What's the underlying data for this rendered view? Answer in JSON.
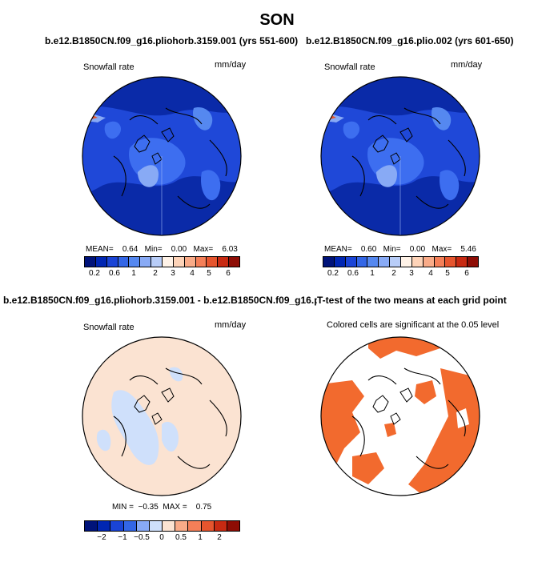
{
  "main_title": "SON",
  "panels": [
    {
      "title": "b.e12.B1850CN.f09_g16.pliohorb.3159.001 (yrs 551-600)",
      "field": "Snowfall rate",
      "units": "mm/day",
      "stats": "MEAN=    0.64   Min=    0.00   Max=    6.03",
      "colorbar_labels": [
        "0.2",
        "0.6",
        "1",
        "2",
        "3",
        "4",
        "5",
        "6"
      ]
    },
    {
      "title": "b.e12.B1850CN.f09_g16.plio.002 (yrs 601-650)",
      "field": "Snowfall rate",
      "units": "mm/day",
      "stats": "MEAN=    0.60   Min=    0.00   Max=    5.46",
      "colorbar_labels": [
        "0.2",
        "0.6",
        "1",
        "2",
        "3",
        "4",
        "5",
        "6"
      ]
    },
    {
      "title": "b.e12.B1850CN.f09_g16.pliohorb.3159.001 - b.e12.B1850CN.f09_g16.plio.002",
      "field": "Snowfall rate",
      "units": "mm/day",
      "stats": "MIN =  −0.35  MAX =    0.75",
      "colorbar_labels": [
        "−2",
        "−1",
        "−0.5",
        "0",
        "0.5",
        "1",
        "2"
      ]
    },
    {
      "title": "T-test of the two means at each grid point",
      "field": "Colored cells are significant at the 0.05 level"
    }
  ],
  "colors": {
    "abs_scale": [
      "#00137a",
      "#0026b3",
      "#1a44d6",
      "#3366e6",
      "#5588f0",
      "#88aaf5",
      "#b8cdf8",
      "#fff3e8",
      "#fdd3b8",
      "#f9ab88",
      "#f47f58",
      "#e6552e",
      "#c82a12",
      "#8e0d05"
    ],
    "diff_scale": [
      "#00137a",
      "#0026b3",
      "#1a44d6",
      "#3366e6",
      "#88aaf5",
      "#cfe0fb",
      "#fbe3d2",
      "#f9ab88",
      "#f47f58",
      "#e6552e",
      "#c82a12",
      "#8e0d05"
    ],
    "sig": "#f26a2e",
    "map_bg_abs": "#1f48d8",
    "map_bg_diff": "#fbe3d2"
  }
}
